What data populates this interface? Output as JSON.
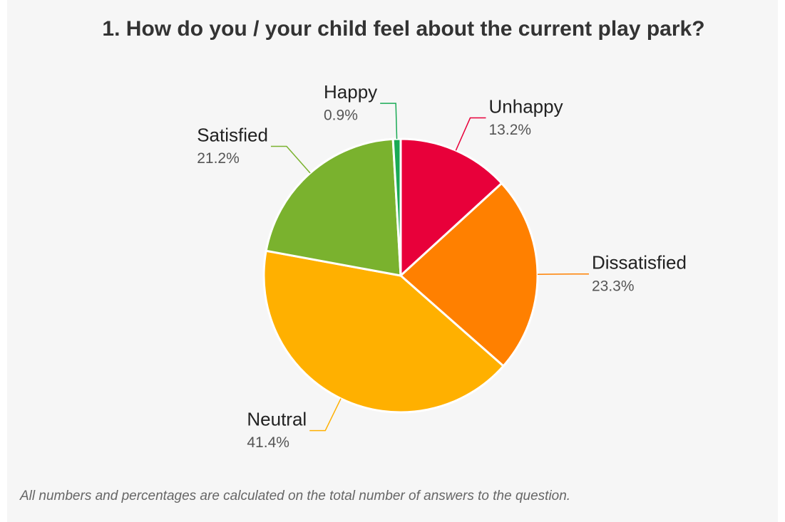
{
  "chart_data": {
    "type": "pie",
    "title": "1. How do you / your child feel about the current play park?",
    "categories": [
      "Unhappy",
      "Dissatisfied",
      "Neutral",
      "Satisfied",
      "Happy"
    ],
    "values": [
      13.2,
      23.3,
      41.4,
      21.2,
      0.9
    ],
    "value_labels": [
      "13.2%",
      "23.3%",
      "41.4%",
      "21.2%",
      "0.9%"
    ],
    "colors": [
      "#e8003a",
      "#ff8000",
      "#ffb000",
      "#7ab22e",
      "#1aaa55"
    ],
    "footnote": "All numbers and percentages are calculated on the total number of answers to the question."
  }
}
